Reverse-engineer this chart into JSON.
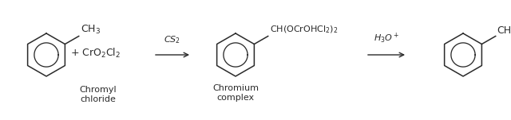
{
  "bg_color": "#ffffff",
  "text_color": "#2a2a2a",
  "fig_width": 6.4,
  "fig_height": 1.51,
  "dpi": 100,
  "label_chromyl": "Chromyl\nchloride",
  "label_chromium": "Chromium\ncomplex",
  "reagent1": "CS$_2$",
  "reagent2": "H$_3$O$^+$",
  "ch3_label": "CH$_3$",
  "cro2cl2_label": "+ CrO$_2$Cl$_2$",
  "product1_sub": "CH(OCrOHCl$_2$)$_2$",
  "product2_sub": "CHO",
  "font_size_formula": 9,
  "font_size_label": 8,
  "font_size_reagent": 8
}
